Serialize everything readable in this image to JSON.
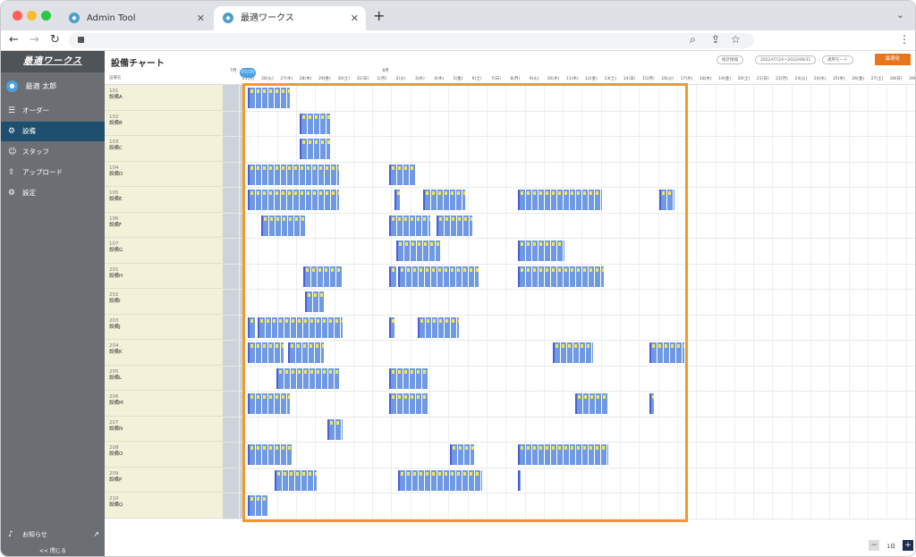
{
  "browser": {
    "tabs": [
      {
        "title": "Admin Tool",
        "active": false
      },
      {
        "title": "最適ワークス",
        "active": true
      }
    ],
    "new_tab": "+",
    "tab_menu": "⌄",
    "url": ""
  },
  "app": {
    "logo": "最適ワークス",
    "user_name": "最適 太郎",
    "nav": [
      {
        "label": "オーダー",
        "icon": "list-icon",
        "glyph": "☰",
        "active": false
      },
      {
        "label": "設備",
        "icon": "equipment-icon",
        "glyph": "⚙",
        "active": true
      },
      {
        "label": "スタッフ",
        "icon": "staff-icon",
        "glyph": "☺",
        "active": false
      },
      {
        "label": "アップロード",
        "icon": "upload-icon",
        "glyph": "⇪",
        "active": false
      },
      {
        "label": "設定",
        "icon": "settings-icon",
        "glyph": "⚙",
        "active": false
      }
    ],
    "notice_label": "お知らせ",
    "close_label": "<< 閉じる"
  },
  "page": {
    "title": "設備チャート",
    "btn_stats": "統計情報",
    "btn_period": "2022/07/24〜2022/08/31",
    "btn_mode": "適用モード",
    "btn_optimize": "最適化",
    "column_header": "設備名",
    "today_badge": "07/25",
    "zoom_minus": "−",
    "zoom_label": "1日",
    "zoom_plus": "+"
  },
  "equipment": [
    {
      "no": "101",
      "name": "設備A"
    },
    {
      "no": "102",
      "name": "設備B"
    },
    {
      "no": "103",
      "name": "設備C"
    },
    {
      "no": "104",
      "name": "設備D"
    },
    {
      "no": "105",
      "name": "設備E"
    },
    {
      "no": "106",
      "name": "設備F"
    },
    {
      "no": "107",
      "name": "設備G"
    },
    {
      "no": "201",
      "name": "設備H"
    },
    {
      "no": "202",
      "name": "設備I"
    },
    {
      "no": "203",
      "name": "設備J"
    },
    {
      "no": "204",
      "name": "設備K"
    },
    {
      "no": "205",
      "name": "設備L"
    },
    {
      "no": "206",
      "name": "設備M"
    },
    {
      "no": "207",
      "name": "設備N"
    },
    {
      "no": "208",
      "name": "設備O"
    },
    {
      "no": "209",
      "name": "設備P"
    },
    {
      "no": "210",
      "name": "設備Q"
    }
  ],
  "month_labels": [
    {
      "label": "7月",
      "day_index": 0
    },
    {
      "label": "8月",
      "day_index": 8
    }
  ],
  "dates": [
    "25(月)",
    "26(火)",
    "27(水)",
    "28(木)",
    "29(金)",
    "30(土)",
    "31(日)",
    "1(月)",
    "2(火)",
    "3(水)",
    "4(木)",
    "5(金)",
    "6(土)",
    "7(日)",
    "8(月)",
    "9(火)",
    "10(水)",
    "11(木)",
    "12(金)",
    "13(土)",
    "14(日)",
    "15(月)",
    "16(火)",
    "17(水)",
    "18(木)",
    "19(金)",
    "20(土)",
    "21(日)",
    "22(月)",
    "23(火)",
    "24(水)",
    "25(木)",
    "26(金)",
    "27(土)",
    "28(日)",
    "29(月)",
    "30(火)"
  ],
  "schedule": [
    {
      "row": 0,
      "blocks": [
        [
          0.0,
          2.2
        ]
      ]
    },
    {
      "row": 1,
      "blocks": [
        [
          2.7,
          4.3
        ]
      ]
    },
    {
      "row": 2,
      "blocks": [
        [
          2.7,
          4.3
        ]
      ]
    },
    {
      "row": 3,
      "blocks": [
        [
          0.0,
          4.8
        ],
        [
          7.4,
          8.8
        ]
      ]
    },
    {
      "row": 4,
      "blocks": [
        [
          0.0,
          4.8
        ],
        [
          7.7,
          8.0
        ],
        [
          9.2,
          11.4
        ],
        [
          14.2,
          18.6
        ],
        [
          21.6,
          22.4
        ]
      ]
    },
    {
      "row": 5,
      "blocks": [
        [
          0.7,
          3.0
        ],
        [
          7.4,
          9.6
        ],
        [
          9.9,
          11.8
        ]
      ]
    },
    {
      "row": 6,
      "blocks": [
        [
          7.8,
          10.1
        ],
        [
          14.2,
          16.6
        ]
      ]
    },
    {
      "row": 7,
      "blocks": [
        [
          2.9,
          5.0
        ],
        [
          7.4,
          7.8
        ],
        [
          7.9,
          12.1
        ],
        [
          14.2,
          18.7
        ]
      ]
    },
    {
      "row": 8,
      "blocks": [
        [
          3.0,
          4.0
        ]
      ]
    },
    {
      "row": 9,
      "blocks": [
        [
          0.0,
          0.4
        ],
        [
          0.5,
          5.0
        ],
        [
          7.4,
          7.7
        ],
        [
          8.9,
          11.1
        ]
      ]
    },
    {
      "row": 10,
      "blocks": [
        [
          0.0,
          1.9
        ],
        [
          2.1,
          4.0
        ],
        [
          16.0,
          18.1
        ],
        [
          21.1,
          22.9
        ]
      ]
    },
    {
      "row": 11,
      "blocks": [
        [
          1.5,
          4.8
        ],
        [
          7.4,
          9.5
        ]
      ]
    },
    {
      "row": 12,
      "blocks": [
        [
          0.0,
          2.2
        ],
        [
          7.4,
          9.5
        ],
        [
          17.2,
          18.9
        ],
        [
          21.1,
          21.3
        ]
      ]
    },
    {
      "row": 13,
      "blocks": [
        [
          4.2,
          5.0
        ]
      ]
    },
    {
      "row": 14,
      "blocks": [
        [
          0.0,
          2.3
        ],
        [
          10.6,
          11.9
        ],
        [
          14.2,
          18.9
        ]
      ]
    },
    {
      "row": 15,
      "blocks": [
        [
          1.4,
          3.6
        ],
        [
          7.9,
          12.3
        ],
        [
          14.2,
          14.3
        ]
      ]
    },
    {
      "row": 16,
      "blocks": [
        [
          0.0,
          1.1
        ]
      ]
    }
  ],
  "colors": {
    "block_fill": "#6f99e2",
    "block_dark": "#4b5fd8",
    "block_label": "#f5e94a",
    "highlight": "#f19a2a",
    "optimize": "#e8741c"
  }
}
